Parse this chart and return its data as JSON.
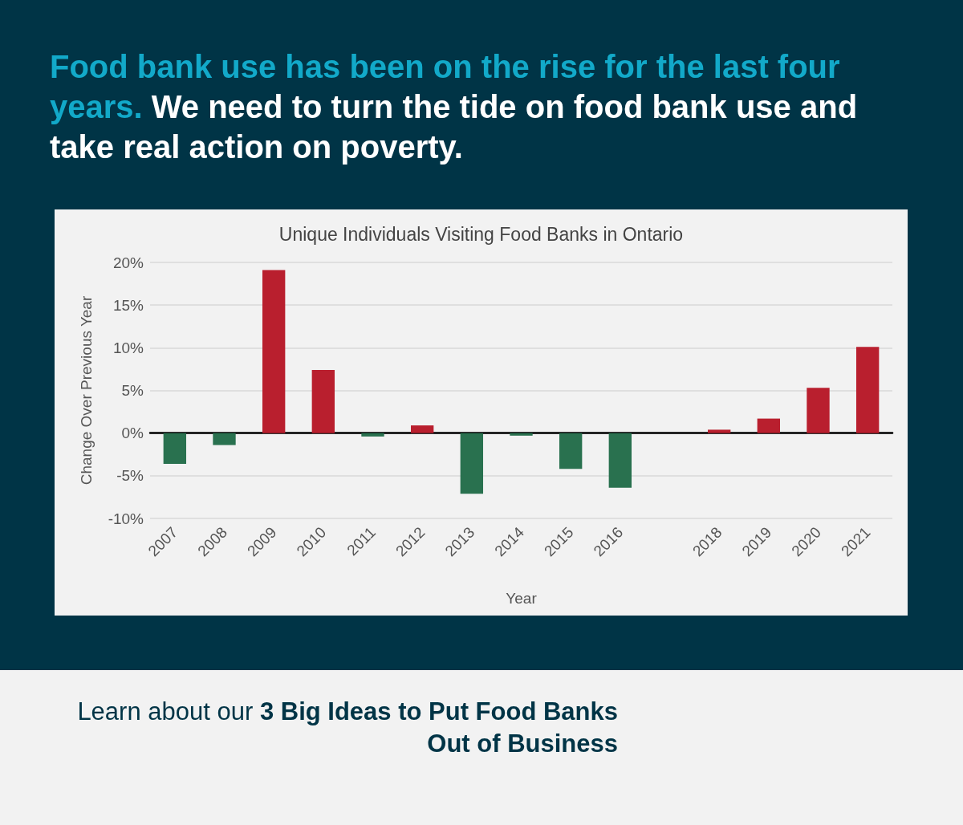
{
  "chart_data": {
    "type": "bar",
    "title": "Unique Individuals Visiting Food Banks in Ontario",
    "xlabel": "Year",
    "ylabel": "Change Over Previous Year",
    "annotations": [
      "Food bank use has been on the rise for the last four years.",
      "We need to turn the tide on food bank use and take real action on poverty.",
      "Learn about our",
      "3 Big Ideas to Put Food Banks Out of Business"
    ],
    "categories": [
      "2007",
      "2008",
      "2009",
      "2010",
      "2011",
      "2012",
      "2013",
      "2014",
      "2015",
      "2016",
      null,
      "2018",
      "2019",
      "2020",
      "2021"
    ],
    "values": [
      -3.6,
      -1.4,
      19.1,
      7.4,
      -0.4,
      0.9,
      -7.1,
      -0.3,
      -4.2,
      -6.4,
      null,
      0.4,
      1.7,
      5.3,
      10.1
    ],
    "colors": [
      "#29714f",
      "#29714f",
      "#b91f2e",
      "#b91f2e",
      "#29714f",
      "#b91f2e",
      "#29714f",
      "#29714f",
      "#29714f",
      "#29714f",
      null,
      "#b91f2e",
      "#b91f2e",
      "#b91f2e",
      "#b91f2e"
    ],
    "ylim": [
      -10,
      20
    ],
    "yticks": [
      {
        "value": -10,
        "label": "-10%"
      },
      {
        "value": -5,
        "label": "-5%"
      },
      {
        "value": 0,
        "label": "0%"
      },
      {
        "value": 5,
        "label": "5%"
      },
      {
        "value": 10,
        "label": "10%"
      },
      {
        "value": 15,
        "label": "15%"
      },
      {
        "value": 20,
        "label": "20%"
      }
    ],
    "grid": "y"
  }
}
